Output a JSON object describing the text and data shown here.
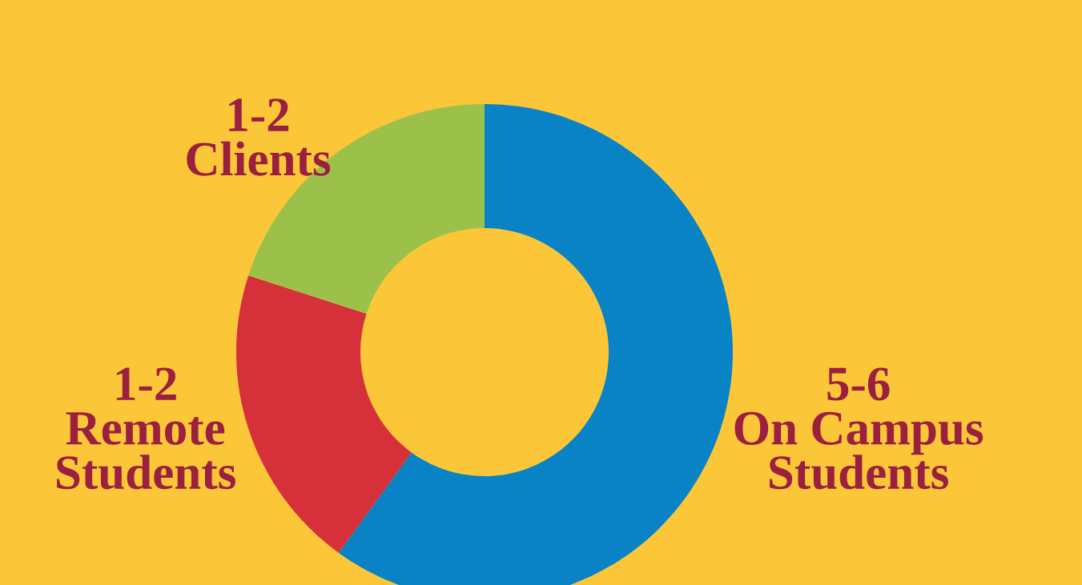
{
  "chart_data": {
    "type": "donut",
    "categories": [
      "On Campus\nStudents",
      "Remote\nStudents",
      "Clients"
    ],
    "values": [
      60,
      20,
      20
    ],
    "value_labels": [
      "5-6",
      "1-2",
      "1-2"
    ],
    "colors": [
      "#0a82c6",
      "#d6303a",
      "#9cc14b"
    ],
    "legend": false
  }
}
